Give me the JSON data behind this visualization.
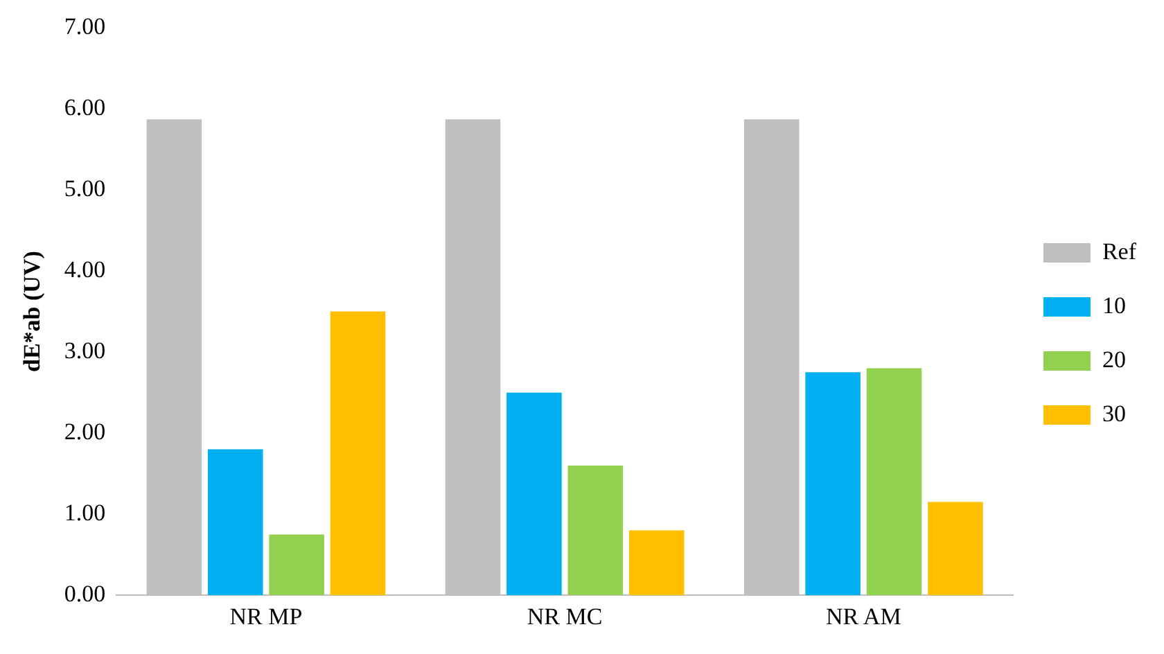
{
  "chart_data": {
    "type": "bar",
    "ylabel": "dE*ab (UV)",
    "categories": [
      "NR MP",
      "NR MC",
      "NR AM"
    ],
    "series": [
      {
        "name": "Ref",
        "color": "#bfbfbf",
        "values": [
          5.87,
          5.87,
          5.87
        ]
      },
      {
        "name": "10",
        "color": "#00b0f0",
        "values": [
          1.8,
          2.5,
          2.75
        ]
      },
      {
        "name": "20",
        "color": "#92d050",
        "values": [
          0.75,
          1.6,
          2.8
        ]
      },
      {
        "name": "30",
        "color": "#ffc000",
        "values": [
          3.5,
          0.8,
          1.15
        ]
      }
    ],
    "ylim": [
      0,
      7
    ],
    "yticks": [
      {
        "value": 0,
        "label": "0.00"
      },
      {
        "value": 1,
        "label": "1.00"
      },
      {
        "value": 2,
        "label": "2.00"
      },
      {
        "value": 3,
        "label": "3.00"
      },
      {
        "value": 4,
        "label": "4.00"
      },
      {
        "value": 5,
        "label": "5.00"
      },
      {
        "value": 6,
        "label": "6.00"
      },
      {
        "value": 7,
        "label": "7.00"
      }
    ],
    "grid": false,
    "legend": "right"
  }
}
